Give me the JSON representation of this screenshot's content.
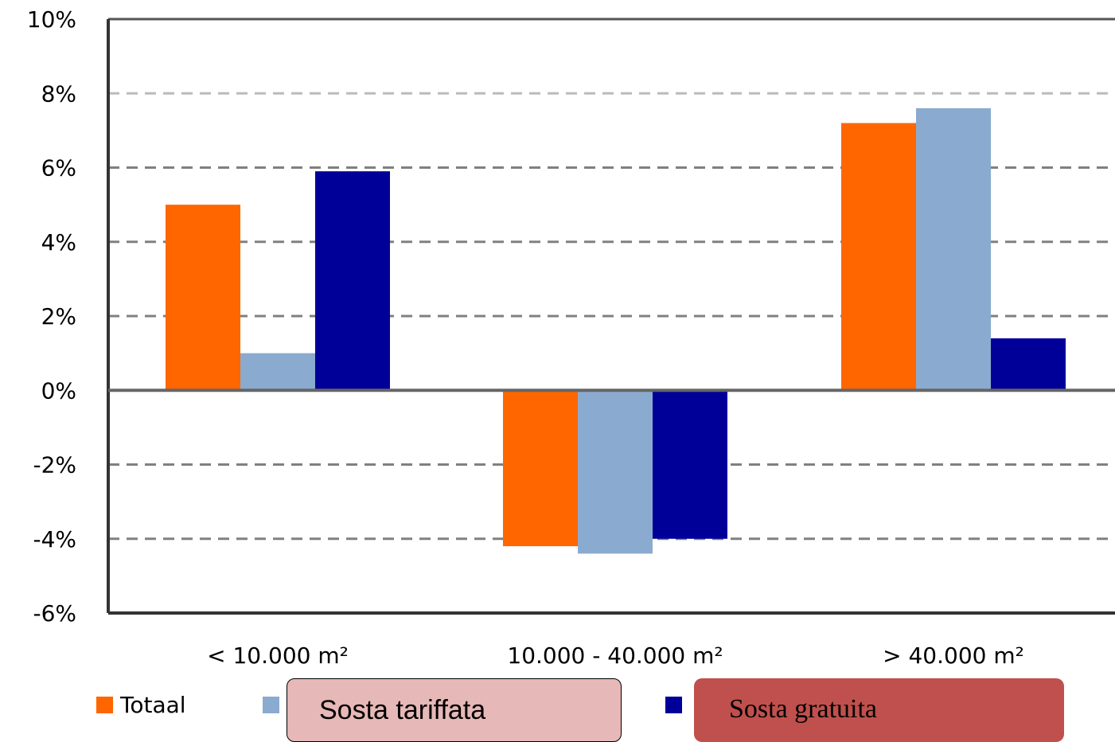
{
  "chart_data": {
    "type": "bar",
    "categories": [
      "< 10.000 m²",
      "10.000 - 40.000 m²",
      "> 40.000 m²"
    ],
    "series": [
      {
        "name": "Totaal",
        "color": "#ff6600",
        "values": [
          5.0,
          -4.2,
          7.2
        ]
      },
      {
        "name": "",
        "color": "#8aabcf",
        "values": [
          1.0,
          -4.4,
          7.6
        ]
      },
      {
        "name": "",
        "color": "#000099",
        "values": [
          5.9,
          -4.0,
          1.4
        ]
      }
    ],
    "y_ticks": [
      "10%",
      "8%",
      "6%",
      "4%",
      "2%",
      "0%",
      "-2%",
      "-4%",
      "-6%"
    ],
    "ylim": [
      -6,
      10
    ],
    "y_step": 2,
    "grid": "dashed horizontal",
    "legend_position": "bottom",
    "title": "",
    "xlabel": "",
    "ylabel": ""
  },
  "overlays": {
    "tariffata_label": "Sosta tariffata",
    "gratuita_label": "Sosta gratuita"
  }
}
